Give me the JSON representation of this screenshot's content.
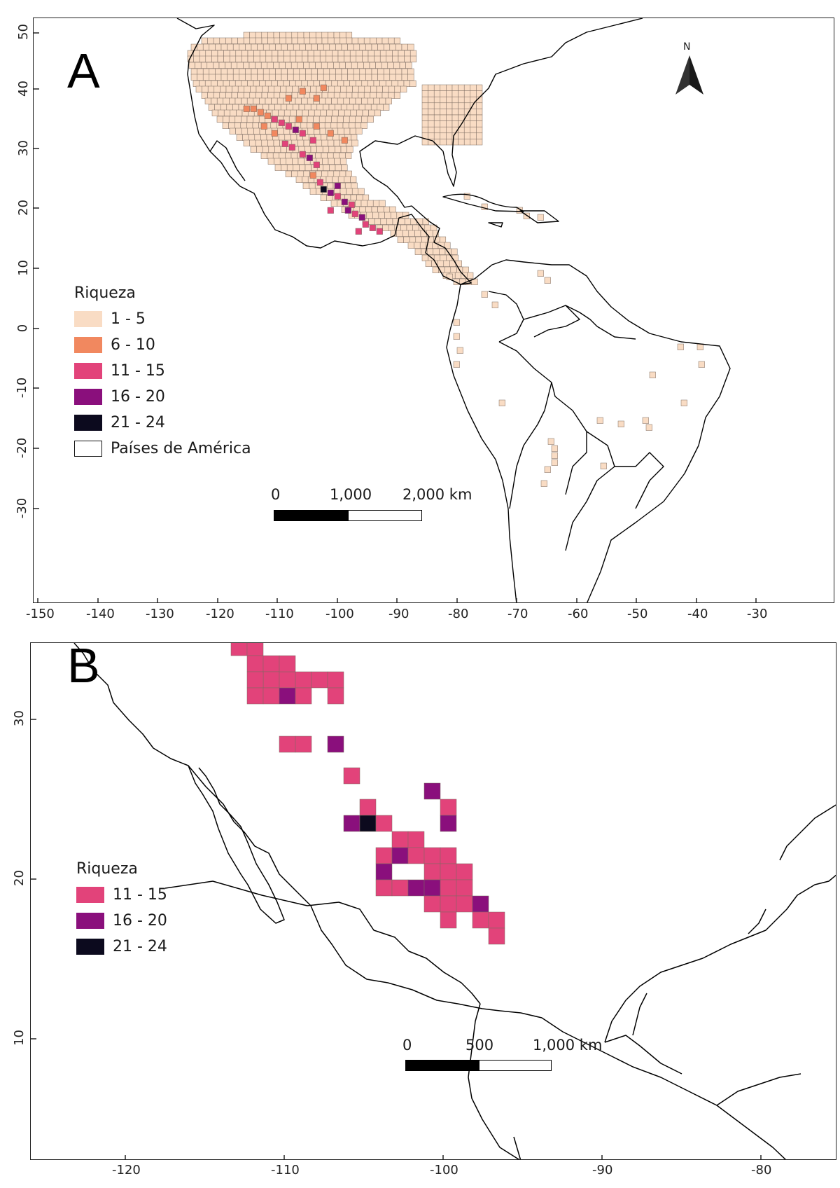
{
  "panel_a": {
    "letter": "A",
    "north_label": "N",
    "x_ticks": [
      "-150",
      "-140",
      "-130",
      "-120",
      "-110",
      "-100",
      "-90",
      "-80",
      "-70",
      "-60",
      "-50",
      "-40",
      "-30"
    ],
    "y_ticks": [
      "50",
      "40",
      "30",
      "20",
      "10",
      "0",
      "-10",
      "-20",
      "-30"
    ],
    "legend": {
      "title": "Riqueza",
      "items": [
        {
          "label": "1 - 5",
          "color": "#f9dcc4"
        },
        {
          "label": "6 - 10",
          "color": "#f1885f"
        },
        {
          "label": "11 - 15",
          "color": "#e2437a"
        },
        {
          "label": "16 - 20",
          "color": "#8a0f7c"
        },
        {
          "label": "21 - 24",
          "color": "#0c0a1e"
        },
        {
          "label": "Países de América",
          "color": "#ffffff"
        }
      ]
    },
    "scale": {
      "labels": [
        "0",
        "1,000",
        "2,000 km"
      ]
    }
  },
  "panel_b": {
    "letter": "B",
    "x_ticks": [
      "-120",
      "-110",
      "-100",
      "-90",
      "-80"
    ],
    "y_ticks": [
      "30",
      "20",
      "10"
    ],
    "legend": {
      "title": "Riqueza",
      "items": [
        {
          "label": "11 - 15",
          "color": "#e2437a"
        },
        {
          "label": "16 - 20",
          "color": "#8a0f7c"
        },
        {
          "label": "21 - 24",
          "color": "#0c0a1e"
        }
      ]
    },
    "scale": {
      "labels": [
        "0",
        "500",
        "1,000 km"
      ]
    }
  }
}
